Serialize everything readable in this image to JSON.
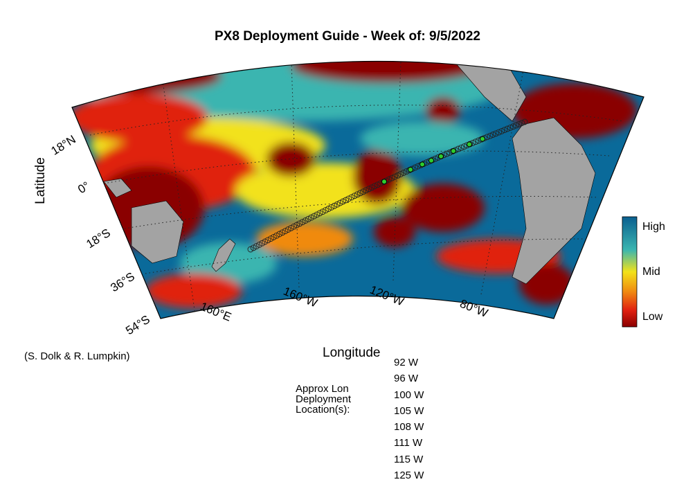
{
  "title": "PX8 Deployment Guide - Week of: 9/5/2022",
  "axes": {
    "ylabel": "Latitude",
    "xlabel": "Longitude"
  },
  "lat_ticks": [
    "18°N",
    "0°",
    "18°S",
    "36°S",
    "54°S"
  ],
  "lon_ticks": [
    "160°E",
    "160°W",
    "120°W",
    "80°W"
  ],
  "colorbar": {
    "labels": [
      "High",
      "Mid",
      "Low"
    ],
    "colors": [
      "#0a5f8f",
      "#3ab5b0",
      "#f2e21a",
      "#f08a10",
      "#e02010",
      "#8a0000"
    ]
  },
  "credit": "(S. Dolk & R. Lumpkin)",
  "deployment": {
    "caption": [
      "Approx Lon",
      "Deployment",
      "Location(s):"
    ],
    "longitudes": [
      "92 W",
      "96 W",
      "100 W",
      "105 W",
      "108 W",
      "111 W",
      "115 W",
      "125 W"
    ]
  },
  "colors": {
    "land": "#a3a3a3",
    "ocean_high": "#0a6a9a",
    "low": "#8a0000",
    "track_point": "#2ecc2e"
  }
}
